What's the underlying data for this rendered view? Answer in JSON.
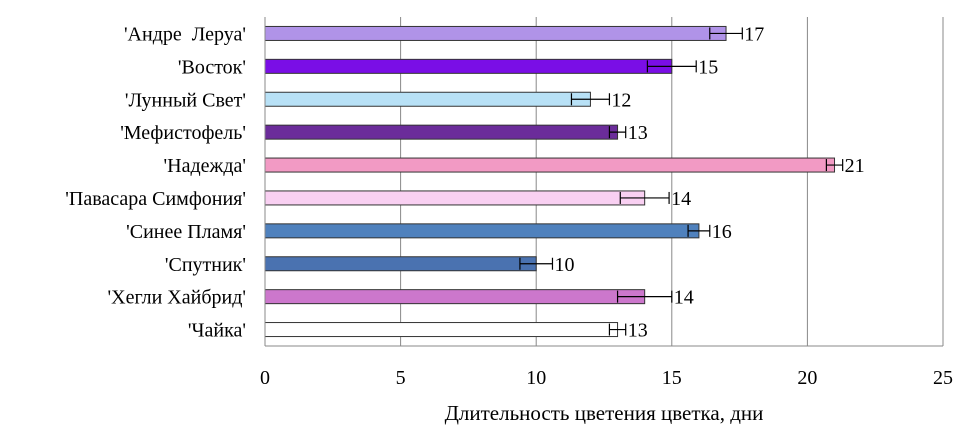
{
  "chart_data": {
    "type": "bar",
    "orientation": "horizontal",
    "categories": [
      "'Андре  Леруа'",
      "'Восток'",
      "'Лунный Свет'",
      "'Мефистофель'",
      "'Надежда'",
      "'Павасара Симфония'",
      "'Синее Пламя'",
      "'Спутник'",
      "'Хегли Хайбрид'",
      "'Чайка'"
    ],
    "values": [
      17,
      15,
      12,
      13,
      21,
      14,
      16,
      10,
      14,
      13
    ],
    "value_labels": [
      "17",
      "15",
      "12",
      "13",
      "21",
      "14",
      "16",
      "10",
      "14",
      "13"
    ],
    "error": [
      0.6,
      0.9,
      0.7,
      0.3,
      0.3,
      0.9,
      0.4,
      0.6,
      1.0,
      0.3
    ],
    "bar_colors": [
      "#B093E8",
      "#7A0EE6",
      "#B8E1F6",
      "#6B2C9A",
      "#F29AC4",
      "#F9D0F2",
      "#4F81BD",
      "#4A72B0",
      "#CC77CC",
      "#FFFFFF"
    ],
    "title": "",
    "xlabel": "Длительность цветения цветка, дни",
    "ylabel": "",
    "xlim": [
      0,
      25
    ],
    "xticks": [
      0,
      5,
      10,
      15,
      20,
      25
    ],
    "xtick_labels": [
      "0",
      "5",
      "10",
      "15",
      "20",
      "25"
    ],
    "grid": "vertical major gridlines",
    "legend": "none"
  }
}
